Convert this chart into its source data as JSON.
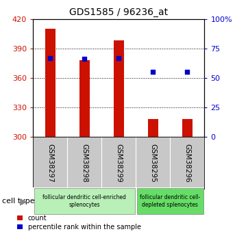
{
  "title": "GDS1585 / 96236_at",
  "samples": [
    "GSM38297",
    "GSM38298",
    "GSM38299",
    "GSM38295",
    "GSM38296"
  ],
  "counts": [
    410,
    378,
    398,
    318,
    318
  ],
  "percentiles": [
    67,
    66,
    67,
    55,
    55
  ],
  "ymin": 300,
  "ymax": 420,
  "yticks_left": [
    300,
    330,
    360,
    390,
    420
  ],
  "yticks_right": [
    0,
    25,
    50,
    75,
    100
  ],
  "bar_color": "#cc1100",
  "dot_color": "#0000cc",
  "xlabel_color": "#cc1100",
  "right_axis_color": "#0000cc",
  "bg_color": "#ffffff",
  "plot_bg": "#ffffff",
  "tick_area_bg": "#c8c8c8",
  "group1_label": "follicular dendritic cell-enriched\nsplenocytes",
  "group2_label": "follicular dendritic cell-\ndepleted splenocytes",
  "group1_color": "#b8f0b8",
  "group2_color": "#66dd66",
  "legend_count_label": "count",
  "legend_pct_label": "percentile rank within the sample",
  "cell_type_label": "cell type"
}
